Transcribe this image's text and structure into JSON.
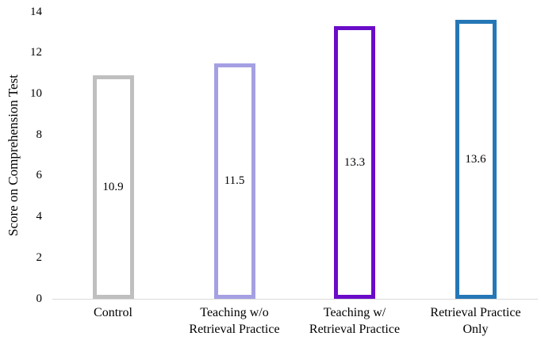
{
  "chart_data": {
    "type": "bar",
    "title": "",
    "xlabel": "",
    "ylabel": "Score on Comprehension Test",
    "ylim": [
      0,
      14
    ],
    "yticks": [
      0,
      2,
      4,
      6,
      8,
      10,
      12,
      14
    ],
    "grid": false,
    "legend": false,
    "categories": [
      "Control",
      "Teaching w/o\nRetrieval Practice",
      "Teaching w/\nRetrieval Practice",
      "Retrieval Practice\nOnly"
    ],
    "values": [
      10.9,
      11.5,
      13.3,
      13.6
    ],
    "value_labels": [
      "10.9",
      "11.5",
      "13.3",
      "13.6"
    ],
    "bar_fill": "#FFFFFF",
    "bar_border_colors": [
      "#BFBFBF",
      "#A5A0E3",
      "#6A0BC8",
      "#2577B6"
    ],
    "axis_line_color": "#D9D9D9",
    "text_color": "#000000"
  }
}
